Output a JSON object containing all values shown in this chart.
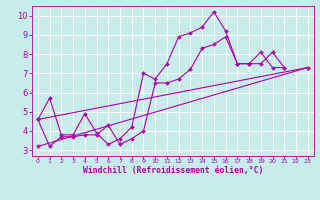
{
  "background_color": "#c8ecec",
  "line_color": "#aa00aa",
  "grid_color": "#ffffff",
  "xlabel": "Windchill (Refroidissement éolien,°C)",
  "xlabel_color": "#aa00aa",
  "xlim": [
    -0.5,
    23.5
  ],
  "ylim": [
    2.7,
    10.5
  ],
  "yticks": [
    3,
    4,
    5,
    6,
    7,
    8,
    9,
    10
  ],
  "xticks": [
    0,
    1,
    2,
    3,
    4,
    5,
    6,
    7,
    8,
    9,
    10,
    11,
    12,
    13,
    14,
    15,
    16,
    17,
    18,
    19,
    20,
    21,
    22,
    23
  ],
  "tick_color": "#aa00aa",
  "series": [
    {
      "x": [
        0,
        1,
        2,
        3,
        4,
        5,
        6,
        7,
        8,
        9,
        10,
        11,
        12,
        13,
        14,
        15,
        16,
        17,
        18,
        19,
        20,
        21
      ],
      "y": [
        4.6,
        5.7,
        3.8,
        3.8,
        4.9,
        3.9,
        3.3,
        3.6,
        4.2,
        7.0,
        6.7,
        7.5,
        8.9,
        9.1,
        9.4,
        10.2,
        9.2,
        7.5,
        7.5,
        8.1,
        7.3,
        7.3
      ]
    },
    {
      "x": [
        0,
        1,
        2,
        3,
        4,
        5,
        6,
        7,
        8,
        9,
        10,
        11,
        12,
        13,
        14,
        15,
        16,
        17,
        18,
        19,
        20,
        21
      ],
      "y": [
        4.6,
        3.2,
        3.7,
        3.7,
        3.8,
        3.8,
        4.3,
        3.3,
        3.6,
        4.0,
        6.5,
        6.5,
        6.7,
        7.2,
        8.3,
        8.5,
        8.9,
        7.5,
        7.5,
        7.5,
        8.1,
        7.3
      ]
    },
    {
      "x": [
        0,
        23
      ],
      "y": [
        4.6,
        7.3
      ]
    },
    {
      "x": [
        0,
        23
      ],
      "y": [
        3.2,
        7.3
      ]
    }
  ]
}
